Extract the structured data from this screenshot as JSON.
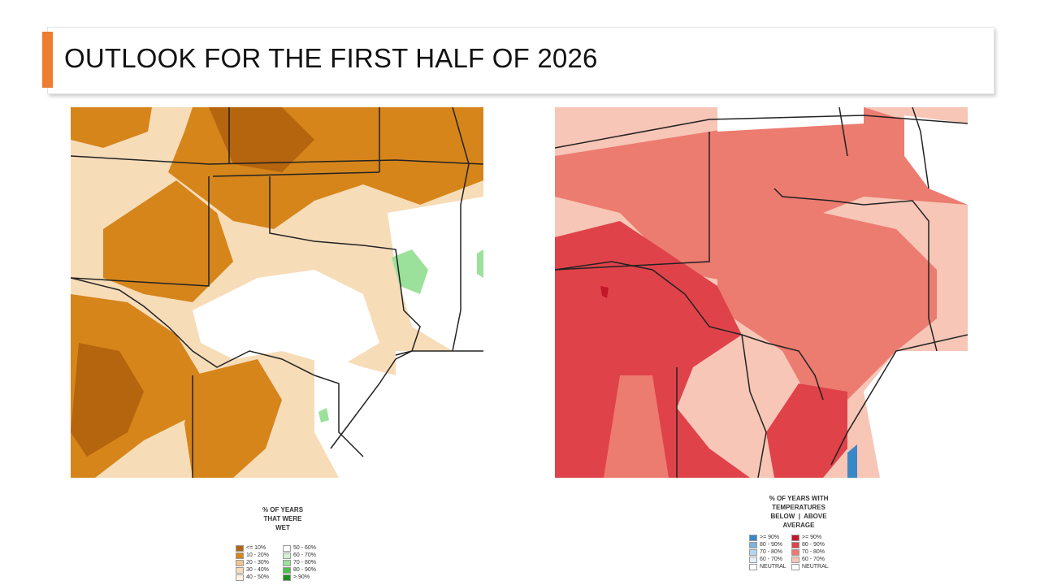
{
  "slide": {
    "title": "OUTLOOK FOR THE FIRST HALF OF 2026",
    "accent_color": "#ed7d31"
  },
  "precip_legend": {
    "title_lines": [
      "% OF YEARS",
      "THAT WERE",
      "WET"
    ],
    "left": [
      {
        "label": "<= 10%",
        "color": "#b5650d"
      },
      {
        "label": "10 - 20%",
        "color": "#d6851a"
      },
      {
        "label": "20 - 30%",
        "color": "#eec48d"
      },
      {
        "label": "30 - 40%",
        "color": "#f7dcb8"
      },
      {
        "label": "40 - 50%",
        "color": "#fdf2e3"
      }
    ],
    "right": [
      {
        "label": "50 - 60%",
        "color": "#ffffff"
      },
      {
        "label": "60 - 70%",
        "color": "#d4f0d4"
      },
      {
        "label": "70 - 80%",
        "color": "#9be19b"
      },
      {
        "label": "80 - 90%",
        "color": "#4cbf4c"
      },
      {
        "label": "> 90%",
        "color": "#1f8f1f"
      }
    ]
  },
  "temp_legend": {
    "title_lines": [
      "% OF YEARS WITH",
      "TEMPERATURES",
      "BELOW  |  ABOVE",
      "AVERAGE"
    ],
    "left": [
      {
        "label": ">= 90%",
        "color": "#3a87c8"
      },
      {
        "label": "80 - 90%",
        "color": "#7db4dd"
      },
      {
        "label": "70 - 80%",
        "color": "#b7d6ee"
      },
      {
        "label": "60 - 70%",
        "color": "#e2eff8"
      },
      {
        "label": "NEUTRAL",
        "color": "#ffffff"
      }
    ],
    "right": [
      {
        "label": ">= 90%",
        "color": "#c2172a"
      },
      {
        "label": "80 - 90%",
        "color": "#e0424a"
      },
      {
        "label": "70 - 80%",
        "color": "#ec7b70"
      },
      {
        "label": "60 - 70%",
        "color": "#f7c6b6"
      },
      {
        "label": "NEUTRAL",
        "color": "#ffffff"
      }
    ]
  }
}
